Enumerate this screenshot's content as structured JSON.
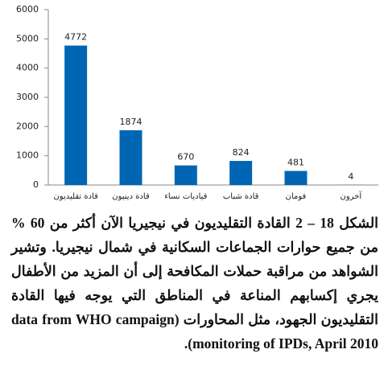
{
  "chart_data": {
    "type": "bar",
    "categories": [
      "قادة تقليديون",
      "قادة دينيون",
      "قياديات نساء",
      "قادة شباب",
      "فومان",
      "آخرون"
    ],
    "values": [
      4772,
      1874,
      670,
      824,
      481,
      4
    ],
    "color": "#0066b3",
    "ylim": [
      0,
      6000
    ],
    "yticks": [
      0,
      1000,
      2000,
      3000,
      4000,
      5000,
      6000
    ],
    "grid": false
  },
  "caption": "الشكل 18 – 2 القادة التقليديون في نيجيريا الآن أكثر من 60 % من جميع حوارات الجماعات السكانية في شمال نيجيريا. وتشير الشواهد من مراقبة حملات المكافحة إلى أن المزيد من الأطفال يجري إكسابهم المناعة في المناطق التي يوجه فيها القادة التقليديون الجهود، مثل المحاورات (data from WHO campaign monitoring of IPDs, April 2010)."
}
